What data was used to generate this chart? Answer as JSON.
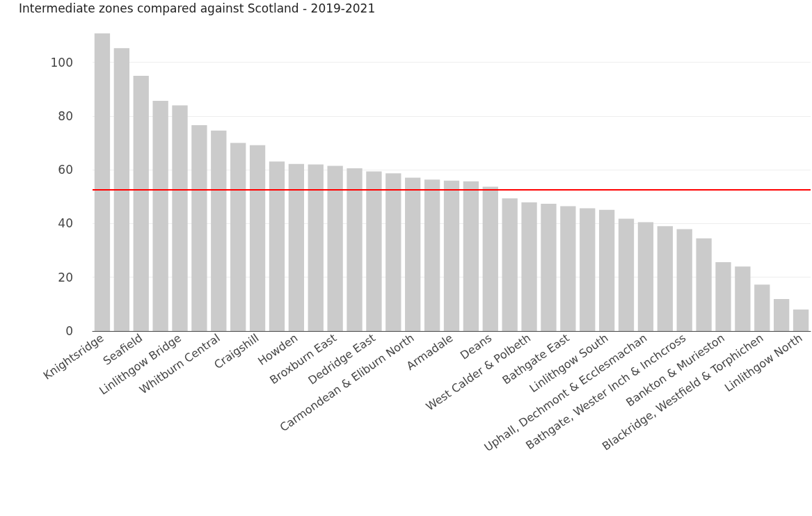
{
  "chart_data": {
    "type": "bar",
    "title": "Intermediate zones compared against Scotland - 2019-2021",
    "categories": [
      "Knightsridge",
      null,
      "Seafield",
      null,
      "Linlithgow Bridge",
      null,
      "Whitburn Central",
      null,
      "Craigshill",
      null,
      "Howden",
      null,
      "Broxburn East",
      null,
      "Dedridge East",
      null,
      "Carmondean & Eliburn North",
      null,
      "Armadale",
      null,
      "Deans",
      null,
      "West Calder & Polbeth",
      null,
      "Bathgate East",
      null,
      "Linlithgow South",
      null,
      "Uphall, Dechmont & Ecclesmachan",
      null,
      "Bathgate, Wester Inch & Inchcross",
      null,
      "Bankton & Murieston",
      null,
      "Blackridge, Westfield & Torphichen",
      null,
      "Linlithgow North"
    ],
    "values": [
      110.8,
      105.3,
      95.0,
      85.7,
      84.0,
      76.6,
      74.6,
      70.0,
      69.2,
      63.1,
      62.2,
      62.0,
      61.5,
      60.6,
      59.4,
      58.7,
      57.1,
      56.4,
      56.0,
      55.7,
      53.7,
      49.4,
      47.9,
      47.4,
      46.5,
      45.7,
      45.1,
      41.8,
      40.5,
      39.0,
      37.9,
      34.5,
      25.6,
      24.0,
      17.3,
      11.9,
      8.0
    ],
    "color": "#cbcbcb",
    "ylim": [
      0,
      110.8
    ],
    "yticks": [
      0,
      20,
      40,
      60,
      80,
      100
    ],
    "grid": "y",
    "ref_lines": [
      {
        "axis": "y",
        "value": 52.5,
        "color": "#ff0000",
        "line_style": "solid"
      }
    ]
  }
}
